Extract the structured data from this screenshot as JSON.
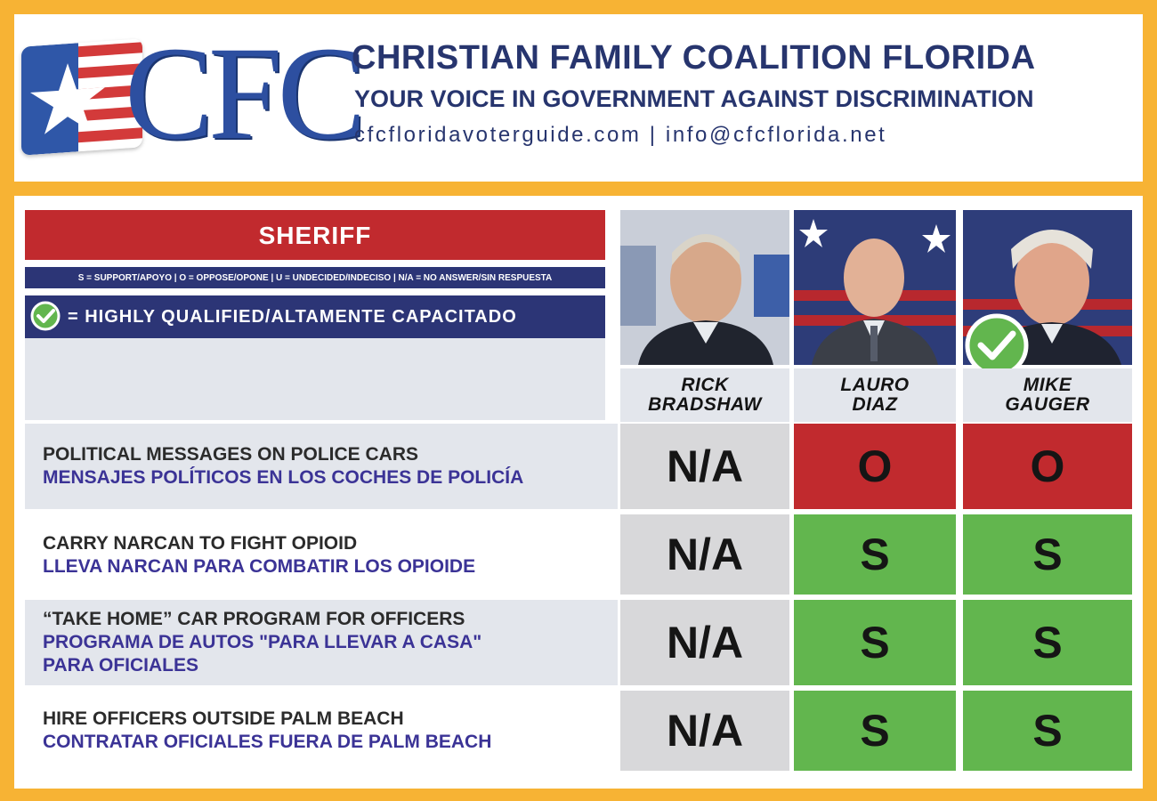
{
  "header": {
    "logo_text": "CFC",
    "org_name": "CHRISTIAN FAMILY COALITION FLORIDA",
    "tagline": "YOUR VOICE IN GOVERNMENT AGAINST DISCRIMINATION",
    "contact": "cfcfloridavoterguide.com | info@cfcflorida.net"
  },
  "office": "SHERIFF",
  "legend": "S = SUPPORT/APOYO | O = OPPOSE/OPONE | U = UNDECIDED/INDECISO | N/A = NO ANSWER/SIN RESPUESTA",
  "qualified_legend": "= HIGHLY QUALIFIED/ALTAMENTE CAPACITADO",
  "colors": {
    "orange_border": "#f7b334",
    "navy": "#2c3576",
    "red": "#c12a2e",
    "green": "#62b64e",
    "grey": "#d8d8da"
  },
  "candidates": [
    {
      "first": "RICK",
      "last": "BRADSHAW",
      "highly_qualified": false
    },
    {
      "first": "LAURO",
      "last": "DIAZ",
      "highly_qualified": false
    },
    {
      "first": "MIKE",
      "last": "GAUGER",
      "highly_qualified": true
    }
  ],
  "issues": [
    {
      "en": "POLITICAL MESSAGES ON POLICE CARS",
      "es": "MENSAJES POLÍTICOS EN LOS COCHES DE POLICÍA",
      "answers": [
        "N/A",
        "O",
        "O"
      ]
    },
    {
      "en": "CARRY NARCAN TO FIGHT OPIOID",
      "es": "LLEVA NARCAN PARA COMBATIR LOS OPIOIDE",
      "answers": [
        "N/A",
        "S",
        "S"
      ]
    },
    {
      "en": "“TAKE HOME” CAR PROGRAM FOR OFFICERS",
      "es": "PROGRAMA DE AUTOS \"PARA LLEVAR A CASA\"",
      "es2": "PARA OFICIALES",
      "answers": [
        "N/A",
        "S",
        "S"
      ]
    },
    {
      "en": "HIRE OFFICERS OUTSIDE PALM BEACH",
      "es": "CONTRATAR OFICIALES FUERA DE PALM BEACH",
      "answers": [
        "N/A",
        "S",
        "S"
      ]
    }
  ]
}
